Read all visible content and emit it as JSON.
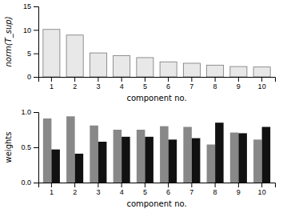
{
  "chart_data": [
    {
      "type": "bar",
      "categories": [
        1,
        2,
        3,
        4,
        5,
        6,
        7,
        8,
        9,
        10
      ],
      "values": [
        10.1,
        8.9,
        5.1,
        4.5,
        4.1,
        3.2,
        2.9,
        2.5,
        2.2,
        2.1
      ],
      "color": "#e8e8e8",
      "x_label": "component no.",
      "y_label": "norm(T_sup)",
      "ylim": [
        0,
        15
      ],
      "yticks": [
        0,
        5,
        10,
        15
      ]
    },
    {
      "type": "bar",
      "categories": [
        1,
        2,
        3,
        4,
        5,
        6,
        7,
        8,
        9,
        10
      ],
      "series": [
        {
          "color": "#888888",
          "values": [
            0.91,
            0.94,
            0.81,
            0.75,
            0.75,
            0.8,
            0.79,
            0.54,
            0.71,
            0.61
          ]
        },
        {
          "color": "#111111",
          "values": [
            0.47,
            0.41,
            0.58,
            0.65,
            0.65,
            0.61,
            0.63,
            0.85,
            0.7,
            0.79
          ]
        }
      ],
      "x_label": "component no.",
      "y_label": "weights",
      "ylim": [
        0,
        1
      ],
      "yticks": [
        {
          "value": 0,
          "label": "0.0"
        },
        0.5,
        {
          "value": 1,
          "label": "1.0"
        }
      ]
    }
  ]
}
